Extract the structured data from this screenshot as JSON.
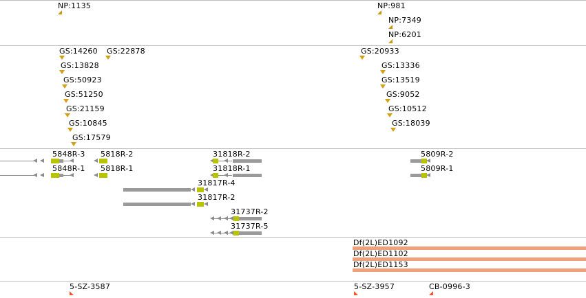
{
  "np_track": [
    "NP:1135",
    "NP:981",
    "NP:7349",
    "NP:6201"
  ],
  "gs_track": [
    "GS:14260",
    "GS:22878",
    "GS:13828",
    "GS:50923",
    "GS:51250",
    "GS:21159",
    "GS:10845",
    "GS:17579",
    "GS:20933",
    "GS:13336",
    "GS:13519",
    "GS:9052",
    "GS:10512",
    "GS:18039"
  ],
  "rnai_track": [
    "5848R-3",
    "5818R-2",
    "31818R-2",
    "5809R-2",
    "5848R-1",
    "5818R-1",
    "31818R-1",
    "5809R-1",
    "31817R-4",
    "31817R-2",
    "31737R-2",
    "31737R-5"
  ],
  "df_track": [
    "Df(2L)ED1092",
    "Df(2L)ED1102",
    "Df(2L)ED1153"
  ],
  "insert_track": [
    "5-SZ-3587",
    "5-SZ-3957",
    "CB-0996-3"
  ],
  "colors": {
    "marker_gold": "#d4a017",
    "marker_red": "#f0562d",
    "deletion_bar": "#f0a07a",
    "gene_grey": "#9a9a9a",
    "exon_yellow": "#b8c400",
    "divider": "#bdbdbd"
  }
}
